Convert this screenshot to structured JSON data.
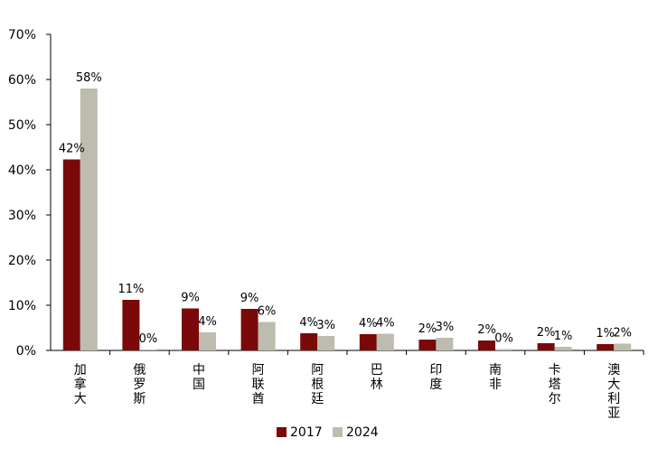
{
  "chart_data": {
    "type": "bar",
    "title": "",
    "xlabel": "",
    "ylabel": "",
    "ylim": [
      0,
      70
    ],
    "ytick_step": 10,
    "y_unit": "%",
    "grid": false,
    "legend_position": "bottom-center",
    "categories": [
      "加拿大",
      "俄罗斯",
      "中国",
      "阿联酋",
      "阿根廷",
      "巴林",
      "印度",
      "南非",
      "卡塔尔",
      "澳大利亚"
    ],
    "series": [
      {
        "name": "2017",
        "color": "#7a0a0a",
        "values": [
          42.3,
          11.2,
          9.3,
          9.2,
          3.8,
          3.6,
          2.4,
          2.2,
          1.6,
          1.4
        ],
        "labels": [
          "42%",
          "11%",
          "9%",
          "9%",
          "4%",
          "4%",
          "2%",
          "2%",
          "2%",
          "1%"
        ]
      },
      {
        "name": "2024",
        "color": "#bdbcaf",
        "values": [
          58.0,
          0.2,
          4.0,
          6.3,
          3.2,
          3.7,
          2.8,
          0.3,
          0.8,
          1.5
        ],
        "labels": [
          "58%",
          "0%",
          "4%",
          "6%",
          "3%",
          "4%",
          "3%",
          "0%",
          "1%",
          "2%"
        ]
      }
    ]
  }
}
